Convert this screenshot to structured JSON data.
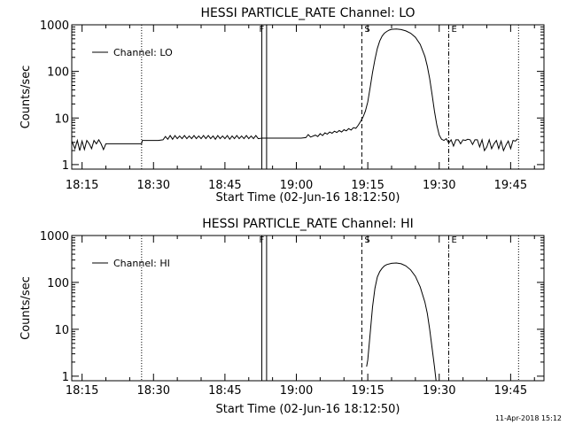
{
  "footer": {
    "timestamp": "11-Apr-2018 15:12"
  },
  "chart_data": [
    {
      "type": "line",
      "title": "HESSI PARTICLE_RATE Channel: LO",
      "xlabel": "Start Time (02-Jun-16 18:12:50)",
      "ylabel": "Counts/sec",
      "y_scale": "log",
      "ylim": [
        0.8,
        1000
      ],
      "xlim": [
        "18:12:50",
        "19:52:00"
      ],
      "x_ticks": [
        "18:15",
        "18:30",
        "18:45",
        "19:00",
        "19:15",
        "19:30",
        "19:45"
      ],
      "y_ticks": [
        "1",
        "10",
        "100",
        "1000"
      ],
      "legend": {
        "position": "top-left",
        "entries": [
          "Channel: LO"
        ]
      },
      "markers": [
        {
          "time": "18:27:30",
          "label": "",
          "style": "dotted"
        },
        {
          "time": "18:52:45",
          "label": "F",
          "style": "solid"
        },
        {
          "time": "18:53:45",
          "label": "",
          "style": "solid"
        },
        {
          "time": "19:13:45",
          "label": "S",
          "style": "dashed"
        },
        {
          "time": "19:32:00",
          "label": "E",
          "style": "dashdot"
        },
        {
          "time": "19:46:40",
          "label": "",
          "style": "dotted"
        }
      ],
      "series": [
        {
          "name": "Channel: LO",
          "points": [
            [
              "18:12:50",
              3.2
            ],
            [
              "18:13:30",
              2.2
            ],
            [
              "18:14:00",
              3.3
            ],
            [
              "18:14:30",
              2.0
            ],
            [
              "18:15:00",
              3.2
            ],
            [
              "18:15:30",
              2.1
            ],
            [
              "18:16:00",
              3.3
            ],
            [
              "18:16:30",
              2.8
            ],
            [
              "18:17:00",
              2.2
            ],
            [
              "18:17:30",
              3.3
            ],
            [
              "18:18:00",
              2.8
            ],
            [
              "18:18:30",
              3.4
            ],
            [
              "18:19:00",
              2.8
            ],
            [
              "18:19:30",
              2.1
            ],
            [
              "18:20:00",
              2.8
            ],
            [
              "18:21:00",
              2.8
            ],
            [
              "18:22:00",
              2.8
            ],
            [
              "18:23:00",
              2.8
            ],
            [
              "18:24:00",
              2.8
            ],
            [
              "18:25:00",
              2.8
            ],
            [
              "18:26:00",
              2.8
            ],
            [
              "18:27:00",
              2.8
            ],
            [
              "18:27:30",
              2.8
            ],
            [
              "18:27:40",
              3.3
            ],
            [
              "18:28:30",
              3.3
            ],
            [
              "18:30:00",
              3.3
            ],
            [
              "18:31:00",
              3.3
            ],
            [
              "18:32:00",
              3.4
            ],
            [
              "18:32:30",
              4.0
            ],
            [
              "18:33:00",
              3.5
            ],
            [
              "18:33:30",
              4.2
            ],
            [
              "18:34:00",
              3.5
            ],
            [
              "18:34:30",
              4.2
            ],
            [
              "18:35:00",
              3.6
            ],
            [
              "18:35:30",
              4.1
            ],
            [
              "18:36:00",
              3.6
            ],
            [
              "18:36:30",
              4.2
            ],
            [
              "18:37:00",
              3.6
            ],
            [
              "18:37:30",
              4.1
            ],
            [
              "18:38:00",
              3.6
            ],
            [
              "18:38:30",
              4.2
            ],
            [
              "18:39:00",
              3.6
            ],
            [
              "18:39:30",
              4.1
            ],
            [
              "18:40:00",
              3.6
            ],
            [
              "18:40:30",
              4.2
            ],
            [
              "18:41:00",
              3.6
            ],
            [
              "18:41:30",
              4.2
            ],
            [
              "18:42:00",
              3.6
            ],
            [
              "18:42:30",
              4.1
            ],
            [
              "18:43:00",
              3.5
            ],
            [
              "18:43:30",
              4.2
            ],
            [
              "18:44:00",
              3.6
            ],
            [
              "18:44:30",
              4.1
            ],
            [
              "18:45:00",
              3.6
            ],
            [
              "18:45:30",
              4.2
            ],
            [
              "18:46:00",
              3.5
            ],
            [
              "18:46:30",
              4.1
            ],
            [
              "18:47:00",
              3.6
            ],
            [
              "18:47:30",
              4.2
            ],
            [
              "18:48:00",
              3.6
            ],
            [
              "18:48:30",
              4.1
            ],
            [
              "18:49:00",
              3.6
            ],
            [
              "18:49:30",
              4.2
            ],
            [
              "18:50:00",
              3.6
            ],
            [
              "18:50:30",
              4.1
            ],
            [
              "18:51:00",
              3.6
            ],
            [
              "18:51:30",
              4.2
            ],
            [
              "18:52:00",
              3.6
            ],
            [
              "18:52:45",
              3.7
            ],
            [
              "18:54:00",
              3.7
            ],
            [
              "18:55:00",
              3.7
            ],
            [
              "18:56:00",
              3.7
            ],
            [
              "18:57:00",
              3.7
            ],
            [
              "18:58:00",
              3.7
            ],
            [
              "18:59:00",
              3.7
            ],
            [
              "19:00:00",
              3.7
            ],
            [
              "19:01:00",
              3.7
            ],
            [
              "19:02:00",
              3.8
            ],
            [
              "19:02:30",
              4.4
            ],
            [
              "19:03:00",
              3.9
            ],
            [
              "19:04:00",
              4.3
            ],
            [
              "19:04:30",
              4.0
            ],
            [
              "19:05:00",
              4.6
            ],
            [
              "19:05:30",
              4.2
            ],
            [
              "19:06:00",
              4.8
            ],
            [
              "19:06:30",
              4.5
            ],
            [
              "19:07:00",
              5.0
            ],
            [
              "19:07:30",
              4.7
            ],
            [
              "19:08:00",
              5.2
            ],
            [
              "19:08:30",
              4.9
            ],
            [
              "19:09:00",
              5.4
            ],
            [
              "19:09:30",
              5.0
            ],
            [
              "19:10:00",
              5.6
            ],
            [
              "19:10:30",
              5.3
            ],
            [
              "19:11:00",
              5.9
            ],
            [
              "19:11:30",
              5.5
            ],
            [
              "19:12:00",
              6.2
            ],
            [
              "19:12:30",
              6.0
            ],
            [
              "19:13:00",
              7.0
            ],
            [
              "19:13:30",
              8.5
            ],
            [
              "19:14:00",
              10.5
            ],
            [
              "19:14:30",
              14
            ],
            [
              "19:15:00",
              22
            ],
            [
              "19:15:30",
              45
            ],
            [
              "19:16:00",
              95
            ],
            [
              "19:16:30",
              180
            ],
            [
              "19:17:00",
              310
            ],
            [
              "19:17:30",
              450
            ],
            [
              "19:18:00",
              570
            ],
            [
              "19:18:30",
              660
            ],
            [
              "19:19:00",
              720
            ],
            [
              "19:19:30",
              770
            ],
            [
              "19:20:00",
              800
            ],
            [
              "19:21:00",
              810
            ],
            [
              "19:22:00",
              790
            ],
            [
              "19:23:00",
              740
            ],
            [
              "19:24:00",
              660
            ],
            [
              "19:25:00",
              540
            ],
            [
              "19:26:00",
              380
            ],
            [
              "19:27:00",
              210
            ],
            [
              "19:27:30",
              130
            ],
            [
              "19:28:00",
              70
            ],
            [
              "19:28:30",
              32
            ],
            [
              "19:29:00",
              14
            ],
            [
              "19:29:30",
              7
            ],
            [
              "19:30:00",
              4.3
            ],
            [
              "19:30:30",
              3.5
            ],
            [
              "19:31:00",
              3.3
            ],
            [
              "19:31:30",
              3.6
            ],
            [
              "19:32:00",
              2.9
            ],
            [
              "19:32:30",
              3.4
            ],
            [
              "19:33:00",
              2.5
            ],
            [
              "19:33:30",
              3.4
            ],
            [
              "19:34:00",
              3.4
            ],
            [
              "19:34:30",
              2.8
            ],
            [
              "19:35:00",
              3.4
            ],
            [
              "19:35:30",
              3.3
            ],
            [
              "19:36:00",
              3.5
            ],
            [
              "19:36:30",
              3.4
            ],
            [
              "19:37:00",
              2.7
            ],
            [
              "19:37:30",
              3.4
            ],
            [
              "19:38:00",
              3.4
            ],
            [
              "19:38:30",
              2.4
            ],
            [
              "19:39:00",
              3.4
            ],
            [
              "19:39:30",
              2.0
            ],
            [
              "19:40:00",
              2.4
            ],
            [
              "19:40:30",
              3.4
            ],
            [
              "19:41:00",
              2.2
            ],
            [
              "19:41:30",
              2.8
            ],
            [
              "19:42:00",
              3.3
            ],
            [
              "19:42:30",
              2.2
            ],
            [
              "19:43:00",
              3.2
            ],
            [
              "19:43:30",
              2.0
            ],
            [
              "19:44:00",
              2.6
            ],
            [
              "19:44:30",
              3.2
            ],
            [
              "19:45:00",
              2.2
            ],
            [
              "19:45:30",
              3.3
            ],
            [
              "19:46:00",
              3.2
            ],
            [
              "19:46:30",
              3.6
            ]
          ]
        }
      ]
    },
    {
      "type": "line",
      "title": "HESSI PARTICLE_RATE Channel: HI",
      "xlabel": "Start Time (02-Jun-16 18:12:50)",
      "ylabel": "Counts/sec",
      "y_scale": "log",
      "ylim": [
        0.8,
        1000
      ],
      "xlim": [
        "18:12:50",
        "19:52:00"
      ],
      "x_ticks": [
        "18:15",
        "18:30",
        "18:45",
        "19:00",
        "19:15",
        "19:30",
        "19:45"
      ],
      "y_ticks": [
        "1",
        "10",
        "100",
        "1000"
      ],
      "legend": {
        "position": "top-left",
        "entries": [
          "Channel: HI"
        ]
      },
      "markers": [
        {
          "time": "18:27:30",
          "label": "",
          "style": "dotted"
        },
        {
          "time": "18:52:45",
          "label": "F",
          "style": "solid"
        },
        {
          "time": "18:53:45",
          "label": "",
          "style": "solid"
        },
        {
          "time": "19:13:45",
          "label": "S",
          "style": "dashed"
        },
        {
          "time": "19:32:00",
          "label": "E",
          "style": "dashdot"
        },
        {
          "time": "19:46:40",
          "label": "",
          "style": "dotted"
        }
      ],
      "series": [
        {
          "name": "Channel: HI",
          "points": [
            [
              "19:14:45",
              1.6
            ],
            [
              "19:15:00",
              2.2
            ],
            [
              "19:15:30",
              8
            ],
            [
              "19:16:00",
              30
            ],
            [
              "19:16:30",
              75
            ],
            [
              "19:17:00",
              130
            ],
            [
              "19:17:30",
              170
            ],
            [
              "19:18:00",
              200
            ],
            [
              "19:18:30",
              225
            ],
            [
              "19:19:00",
              240
            ],
            [
              "19:20:00",
              255
            ],
            [
              "19:21:00",
              260
            ],
            [
              "19:22:00",
              250
            ],
            [
              "19:23:00",
              225
            ],
            [
              "19:24:00",
              185
            ],
            [
              "19:25:00",
              135
            ],
            [
              "19:26:00",
              80
            ],
            [
              "19:27:00",
              38
            ],
            [
              "19:27:30",
              22
            ],
            [
              "19:28:00",
              10
            ],
            [
              "19:28:30",
              4
            ],
            [
              "19:29:00",
              1.6
            ],
            [
              "19:29:20",
              0.8
            ]
          ]
        }
      ]
    }
  ]
}
